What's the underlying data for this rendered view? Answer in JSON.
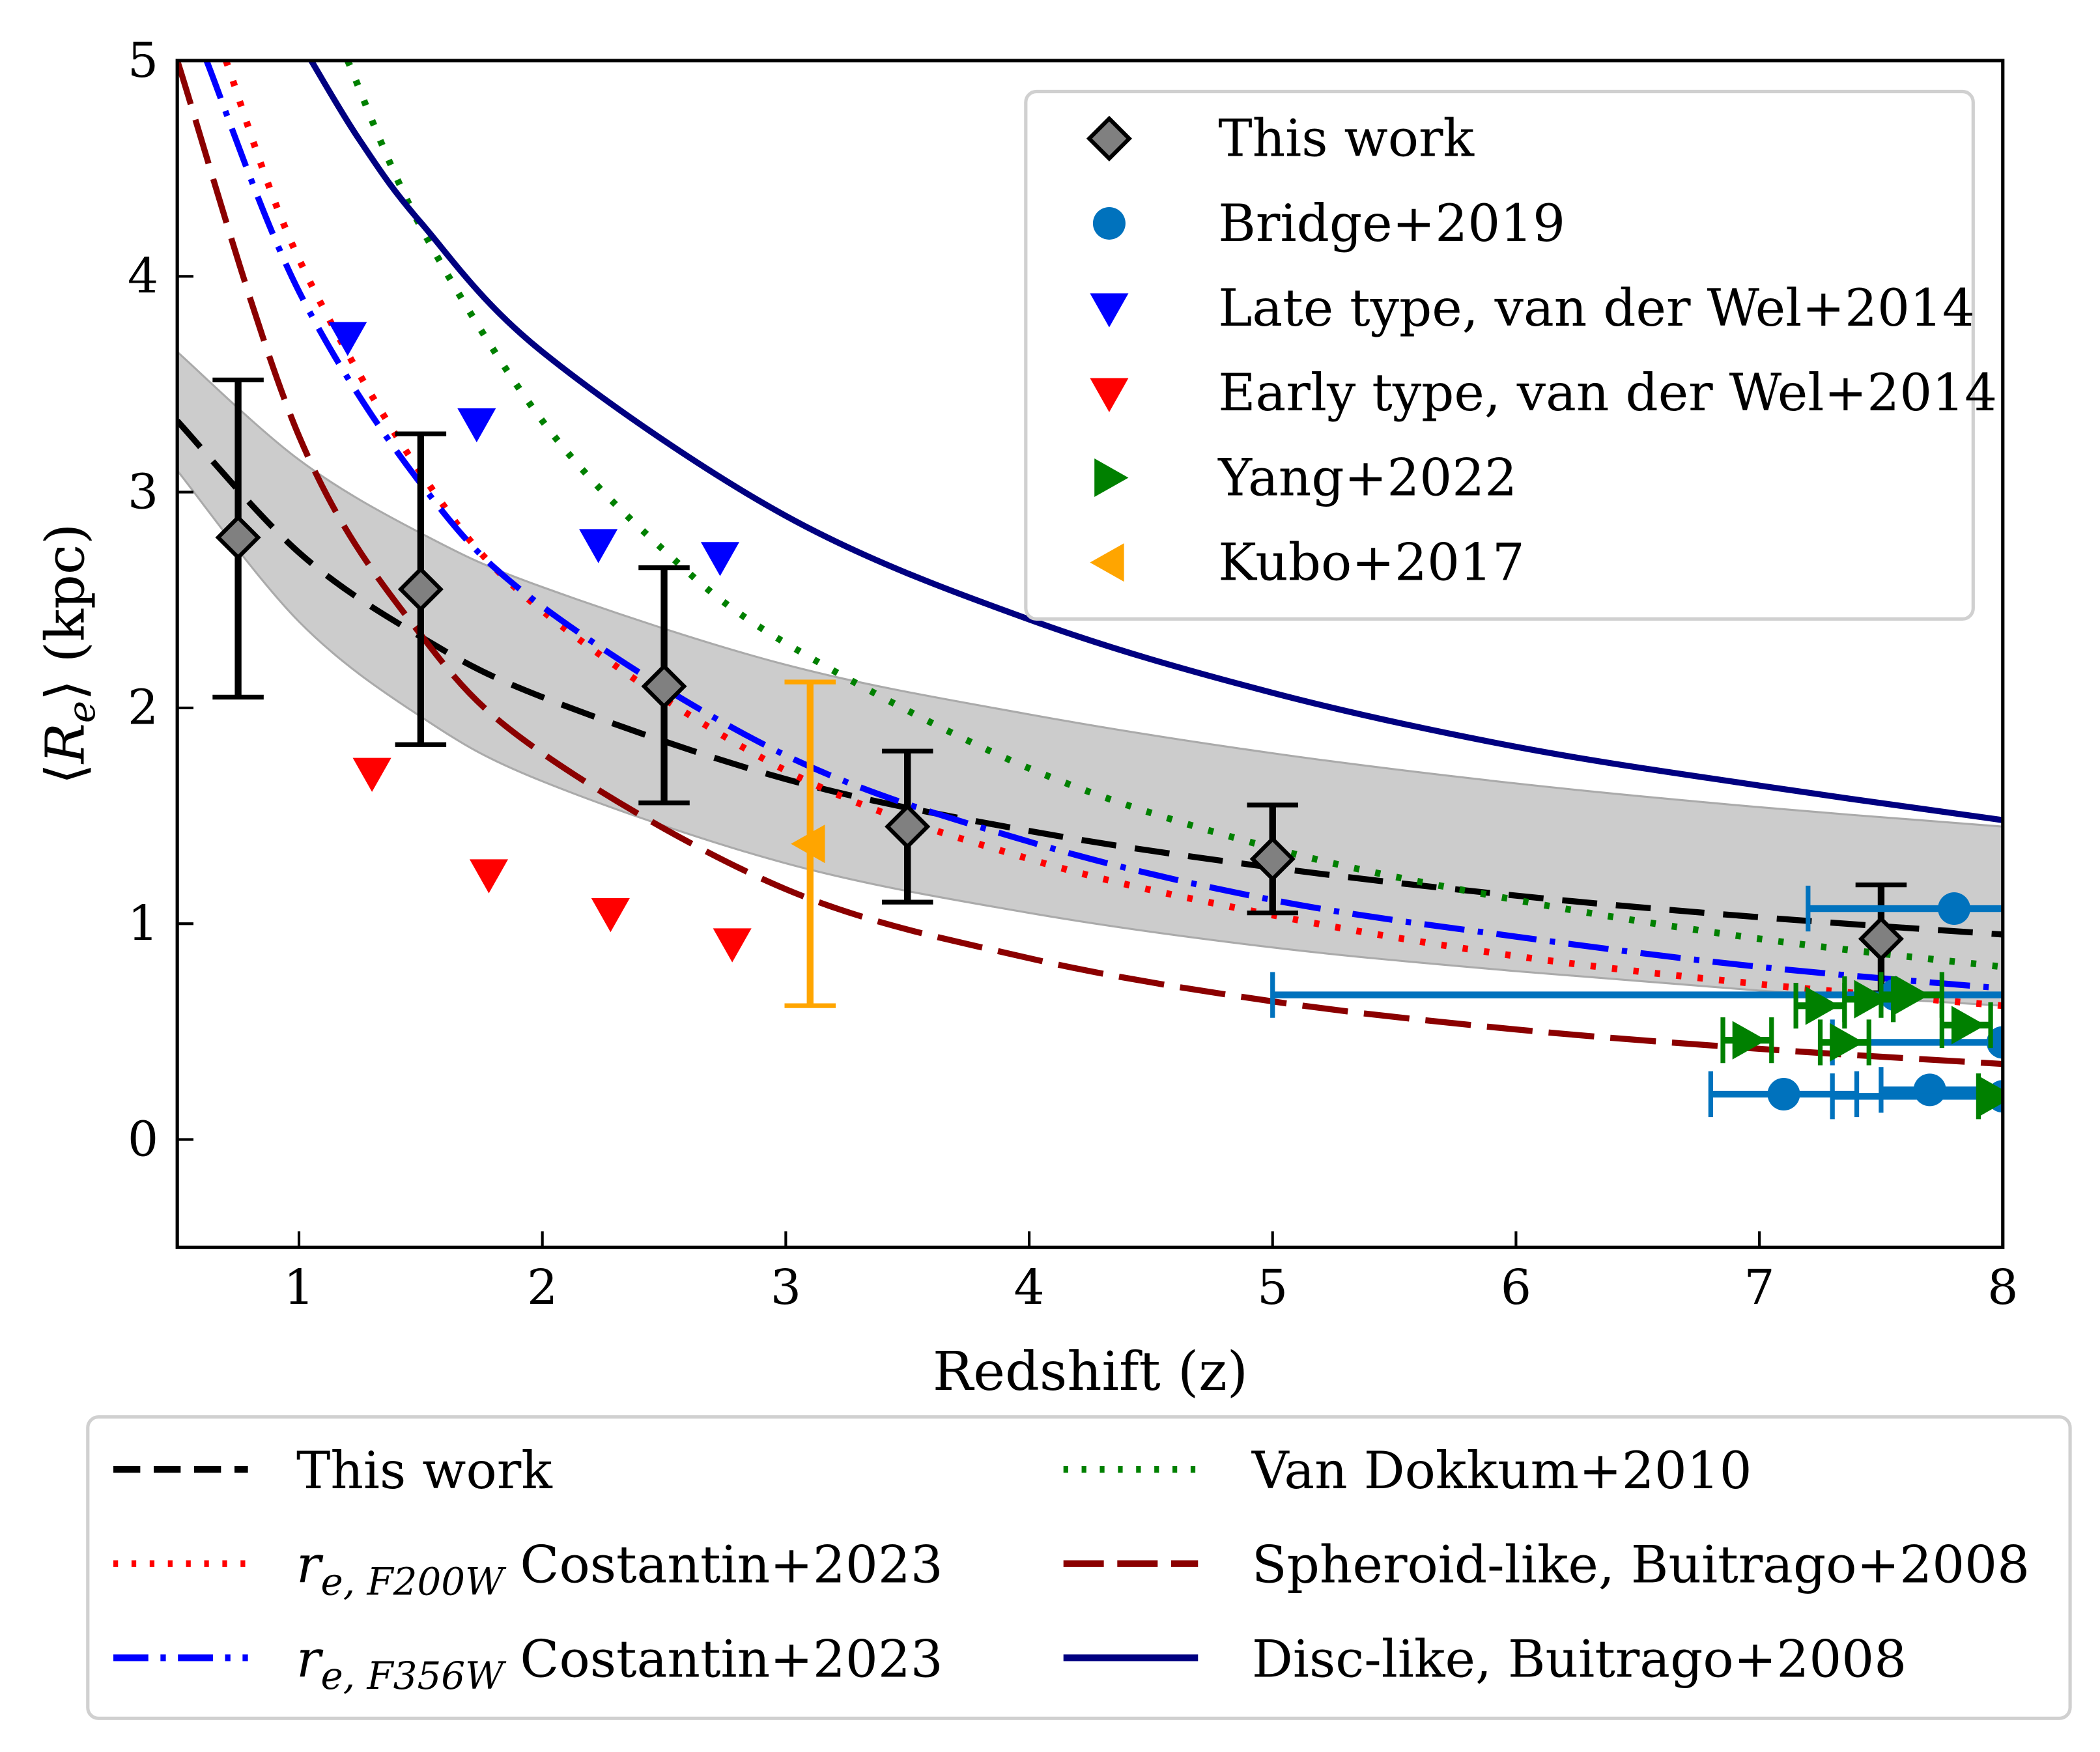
{
  "chart_data": {
    "type": "scatter",
    "xlabel": "Redshift (z)",
    "ylabel": {
      "prefix": "⟨",
      "symbol": "R",
      "subscript": "e",
      "suffix": "⟩ (kpc)"
    },
    "xlim": [
      0.5,
      8
    ],
    "ylim": [
      -0.5,
      5
    ],
    "xticks": [
      1,
      2,
      3,
      4,
      5,
      6,
      7,
      8
    ],
    "yticks": [
      0,
      1,
      2,
      3,
      4,
      5
    ],
    "grid": false,
    "band": {
      "x": [
        0.5,
        1,
        1.5,
        2,
        3,
        4,
        5,
        6,
        7,
        8
      ],
      "upper": [
        3.65,
        3.15,
        2.81,
        2.56,
        2.2,
        1.97,
        1.79,
        1.65,
        1.54,
        1.45
      ],
      "lower": [
        3.1,
        2.4,
        1.96,
        1.66,
        1.28,
        1.05,
        0.89,
        0.78,
        0.69,
        0.62
      ],
      "color": "#cccccc"
    },
    "lines": [
      {
        "name": "This work",
        "style": "dashed",
        "color": "#000000",
        "x": [
          0.5,
          1,
          1.5,
          2,
          3,
          4,
          5,
          6,
          7,
          8
        ],
        "y": [
          3.33,
          2.72,
          2.33,
          2.05,
          1.67,
          1.43,
          1.26,
          1.13,
          1.03,
          0.95
        ]
      },
      {
        "name": "Costantin+2023",
        "symbol": "r",
        "subscript": "e, F200W",
        "style": "dotted",
        "color": "#ff0000",
        "x": [
          0.7,
          1,
          1.5,
          2,
          3,
          4,
          5,
          6,
          7,
          8
        ],
        "y": [
          5.0,
          4.08,
          3.09,
          2.45,
          1.71,
          1.3,
          1.04,
          0.85,
          0.72,
          0.62
        ]
      },
      {
        "name": "Costantin+2023",
        "symbol": "r",
        "subscript": "e, F356W",
        "style": "dashdot",
        "color": "#0000ff",
        "x": [
          0.62,
          1,
          1.5,
          2,
          3,
          4,
          5,
          6,
          7,
          8
        ],
        "y": [
          5.0,
          3.93,
          3.04,
          2.47,
          1.78,
          1.38,
          1.11,
          0.94,
          0.8,
          0.7
        ]
      },
      {
        "name": "Van Dokkum+2010",
        "style": "dotted",
        "color": "#008000",
        "x": [
          1.2,
          1.5,
          2,
          2.5,
          3,
          4,
          5,
          6,
          7,
          8
        ],
        "y": [
          5.0,
          4.23,
          3.33,
          2.73,
          2.3,
          1.72,
          1.35,
          1.11,
          0.93,
          0.8
        ]
      },
      {
        "name": "Spheroid-like, Buitrago+2008",
        "style": "longdash",
        "color": "#8b0000",
        "x": [
          0.5,
          1,
          1.5,
          2,
          3,
          4,
          5,
          6,
          7,
          8
        ],
        "y": [
          5.0,
          3.26,
          2.34,
          1.79,
          1.16,
          0.84,
          0.64,
          0.51,
          0.42,
          0.35
        ]
      },
      {
        "name": "Disc-like, Buitrago+2008",
        "style": "solid",
        "color": "#000080",
        "x": [
          1.05,
          1.25,
          1.5,
          2,
          3,
          4,
          5,
          6,
          7,
          8
        ],
        "y": [
          5.0,
          4.63,
          4.25,
          3.65,
          2.89,
          2.41,
          2.07,
          1.82,
          1.64,
          1.48
        ]
      }
    ],
    "points": [
      {
        "name": "This work",
        "marker": "diamond",
        "color": "#808080",
        "data": [
          {
            "x": 0.75,
            "y": 2.79,
            "ylo": 2.05,
            "yhi": 3.52
          },
          {
            "x": 1.5,
            "y": 2.55,
            "ylo": 1.83,
            "yhi": 3.27
          },
          {
            "x": 2.5,
            "y": 2.1,
            "ylo": 1.56,
            "yhi": 2.65
          },
          {
            "x": 3.5,
            "y": 1.45,
            "ylo": 1.1,
            "yhi": 1.8
          },
          {
            "x": 5.0,
            "y": 1.3,
            "ylo": 1.05,
            "yhi": 1.55
          },
          {
            "x": 7.5,
            "y": 0.93,
            "ylo": 0.68,
            "yhi": 1.18
          }
        ]
      },
      {
        "name": "Bridge+2019",
        "marker": "circle",
        "color": "#0072bd",
        "data": [
          {
            "x": 7.8,
            "y": 1.07,
            "xlo": 7.2,
            "xhi": 8.4
          },
          {
            "x": 7.56,
            "y": 0.67,
            "xlo": 5.0,
            "xhi": 8.4
          },
          {
            "x": 8.0,
            "y": 0.45,
            "xlo": 7.3,
            "xhi": 8.4
          },
          {
            "x": 7.1,
            "y": 0.21,
            "xlo": 6.8,
            "xhi": 7.4
          },
          {
            "x": 7.7,
            "y": 0.23,
            "xlo": 7.5,
            "xhi": 8.4
          },
          {
            "x": 8.0,
            "y": 0.2,
            "xlo": 7.3,
            "xhi": 8.4
          }
        ]
      },
      {
        "name": "Late type, van der Wel+2014",
        "marker": "triangle-down",
        "color": "#0000ff",
        "data": [
          {
            "x": 1.2,
            "y": 3.72
          },
          {
            "x": 1.73,
            "y": 3.32
          },
          {
            "x": 2.23,
            "y": 2.76
          },
          {
            "x": 2.73,
            "y": 2.7
          }
        ]
      },
      {
        "name": "Early type, van der Wel+2014",
        "marker": "triangle-down",
        "color": "#ff0000",
        "data": [
          {
            "x": 1.3,
            "y": 1.7
          },
          {
            "x": 1.78,
            "y": 1.23
          },
          {
            "x": 2.28,
            "y": 1.05
          },
          {
            "x": 2.78,
            "y": 0.91
          }
        ]
      },
      {
        "name": "Yang+2022",
        "marker": "triangle-right",
        "color": "#008000",
        "data": [
          {
            "x": 6.95,
            "y": 0.46,
            "xlo": 6.85,
            "xhi": 7.05
          },
          {
            "x": 7.25,
            "y": 0.62,
            "xlo": 7.15,
            "xhi": 7.35
          },
          {
            "x": 7.45,
            "y": 0.65,
            "xlo": 7.35,
            "xhi": 7.55
          },
          {
            "x": 7.62,
            "y": 0.67,
            "xlo": 7.5,
            "xhi": 7.75
          },
          {
            "x": 7.35,
            "y": 0.45,
            "xlo": 7.25,
            "xhi": 7.45
          },
          {
            "x": 7.85,
            "y": 0.53,
            "xlo": 7.75,
            "xhi": 7.95
          },
          {
            "x": 7.97,
            "y": 0.2,
            "xlo": 7.9,
            "xhi": 8.05
          }
        ]
      },
      {
        "name": "Kubo+2017",
        "marker": "triangle-left",
        "color": "#ffa500",
        "data": [
          {
            "x": 3.1,
            "y": 1.37,
            "ylo": 0.62,
            "yhi": 2.12
          }
        ]
      }
    ],
    "legend_markers": {
      "placement": "top-right",
      "entries": [
        "This work",
        "Bridge+2019",
        "Late type, van der Wel+2014",
        "Early type, van der Wel+2014",
        "Yang+2022",
        "Kubo+2017"
      ]
    },
    "legend_lines": {
      "placement": "below",
      "entries": [
        "This work",
        "Costantin+2023",
        "Costantin+2023",
        "Van Dokkum+2010",
        "Spheroid-like, Buitrago+2008",
        "Disc-like, Buitrago+2008"
      ]
    }
  }
}
